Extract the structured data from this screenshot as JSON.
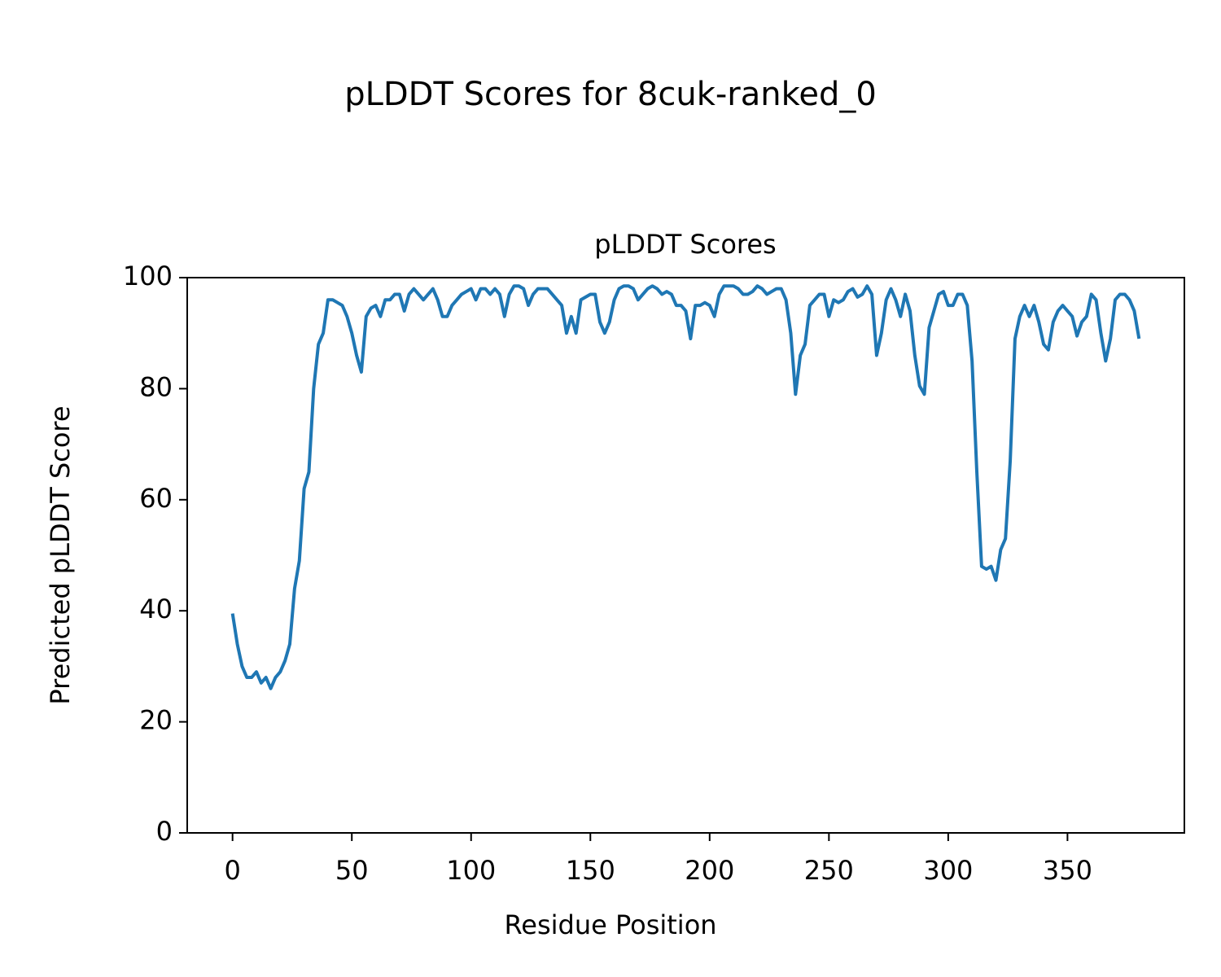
{
  "chart_data": {
    "type": "line",
    "title": "pLDDT Scores for 8cuk-ranked_0",
    "axes_title": "pLDDT Scores",
    "xlabel": "Residue Position",
    "ylabel": "Predicted pLDDT Score",
    "xlim": [
      -19,
      399
    ],
    "xticks": [
      0,
      50,
      100,
      150,
      200,
      250,
      300,
      350
    ],
    "ylim": [
      0,
      100
    ],
    "yticks": [
      0,
      20,
      40,
      60,
      80,
      100
    ],
    "grid": false,
    "x": [
      0,
      2,
      4,
      6,
      8,
      10,
      12,
      14,
      16,
      18,
      20,
      22,
      24,
      26,
      28,
      30,
      32,
      34,
      36,
      38,
      40,
      42,
      44,
      46,
      48,
      50,
      52,
      54,
      56,
      58,
      60,
      62,
      64,
      66,
      68,
      70,
      72,
      74,
      76,
      78,
      80,
      82,
      84,
      86,
      88,
      90,
      92,
      94,
      96,
      98,
      100,
      102,
      104,
      106,
      108,
      110,
      112,
      114,
      116,
      118,
      120,
      122,
      124,
      126,
      128,
      130,
      132,
      134,
      136,
      138,
      140,
      142,
      144,
      146,
      148,
      150,
      152,
      154,
      156,
      158,
      160,
      162,
      164,
      166,
      168,
      170,
      172,
      174,
      176,
      178,
      180,
      182,
      184,
      186,
      188,
      190,
      192,
      194,
      196,
      198,
      200,
      202,
      204,
      206,
      208,
      210,
      212,
      214,
      216,
      218,
      220,
      222,
      224,
      226,
      228,
      230,
      232,
      234,
      236,
      238,
      240,
      242,
      244,
      246,
      248,
      250,
      252,
      254,
      256,
      258,
      260,
      262,
      264,
      266,
      268,
      270,
      272,
      274,
      276,
      278,
      280,
      282,
      284,
      286,
      288,
      290,
      292,
      294,
      296,
      298,
      300,
      302,
      304,
      306,
      308,
      310,
      312,
      314,
      316,
      318,
      320,
      322,
      324,
      326,
      328,
      330,
      332,
      334,
      336,
      338,
      340,
      342,
      344,
      346,
      348,
      350,
      352,
      354,
      356,
      358,
      360,
      362,
      364,
      366,
      368,
      370,
      372,
      374,
      376,
      378,
      380
    ],
    "series": [
      {
        "color": "#1f77b4",
        "values": [
          39.5,
          34,
          30,
          28,
          28,
          29,
          27,
          28,
          26,
          28,
          29,
          31,
          34,
          44,
          49,
          62,
          65,
          80,
          88,
          90,
          96,
          96,
          95.5,
          95,
          93,
          90,
          86,
          83,
          93,
          94.5,
          95,
          93,
          96,
          96,
          97,
          97,
          94,
          97,
          98,
          97,
          96,
          97,
          98,
          96,
          93,
          93,
          95,
          96,
          97,
          97.5,
          98,
          96,
          98,
          98,
          97,
          98,
          97,
          93,
          97,
          98.5,
          98.5,
          98,
          95,
          97,
          98,
          98,
          98,
          97,
          96,
          95,
          90,
          93,
          90,
          96,
          96.5,
          97,
          97,
          92,
          90,
          92,
          96,
          98,
          98.5,
          98.5,
          98,
          96,
          97,
          98,
          98.5,
          98,
          97,
          97.5,
          97,
          95,
          95,
          94,
          89,
          95,
          95,
          95.5,
          95,
          93,
          97,
          98.5,
          98.5,
          98.5,
          98,
          97,
          97,
          97.5,
          98.5,
          98,
          97,
          97.5,
          98,
          98,
          96,
          90,
          79,
          86,
          88,
          95,
          96,
          97,
          97,
          93,
          96,
          95.5,
          96,
          97.5,
          98,
          96.5,
          97,
          98.5,
          97,
          86,
          90,
          96,
          98,
          96,
          93,
          97,
          94,
          86,
          80.5,
          79,
          91,
          94,
          97,
          97.5,
          95,
          95,
          97,
          97,
          95,
          85,
          65,
          48,
          47.5,
          48,
          45.5,
          51,
          53,
          67,
          89,
          93,
          95,
          93,
          95,
          92,
          88,
          87,
          92,
          94,
          95,
          94,
          93,
          89.5,
          92,
          93,
          97,
          96,
          90,
          85,
          89,
          96,
          97,
          97,
          96,
          94,
          89
        ]
      }
    ]
  }
}
